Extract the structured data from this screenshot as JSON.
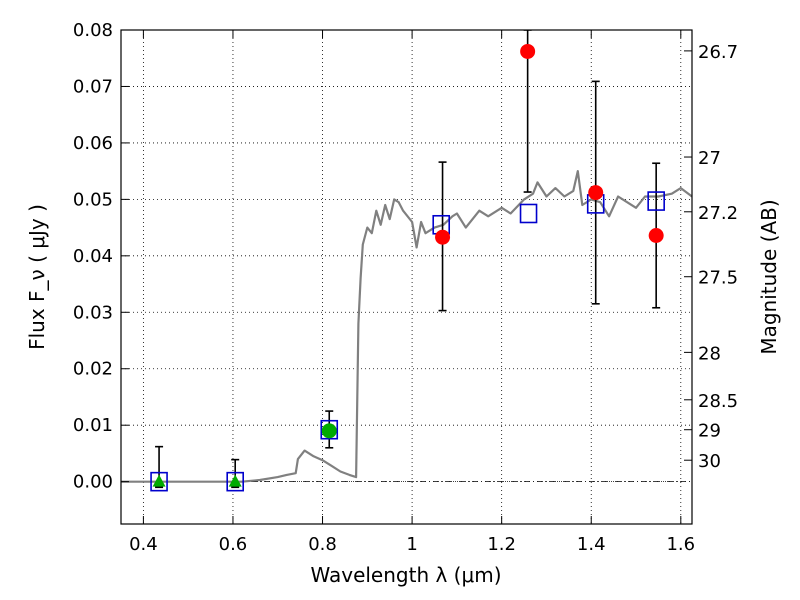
{
  "chart_data": {
    "type": "scatter",
    "xlabel": "Wavelength  λ (μm)",
    "ylabel": "Flux  F_ν  ( μJy )",
    "ylabel_right": "Magnitude (AB)",
    "xlim": [
      0.35,
      1.625
    ],
    "ylim": [
      -0.0075,
      0.08
    ],
    "grid": true,
    "x_ticks": [
      0.4,
      0.6,
      0.8,
      1.0,
      1.2,
      1.4,
      1.6
    ],
    "x_tick_labels": [
      "0.4",
      "0.6",
      "0.8",
      "1",
      "1.2",
      "1.4",
      "1.6"
    ],
    "y_ticks": [
      0.0,
      0.01,
      0.02,
      0.03,
      0.04,
      0.05,
      0.06,
      0.07,
      0.08
    ],
    "y_tick_labels": [
      "0.00",
      "0.01",
      "0.02",
      "0.03",
      "0.04",
      "0.05",
      "0.06",
      "0.07",
      "0.08"
    ],
    "right_ticks": [
      {
        "flux": 0.0763,
        "label": "26.7"
      },
      {
        "flux": 0.0575,
        "label": "27"
      },
      {
        "flux": 0.0478,
        "label": "27.2"
      },
      {
        "flux": 0.0363,
        "label": "27.5"
      },
      {
        "flux": 0.0229,
        "label": "28"
      },
      {
        "flux": 0.0145,
        "label": "28.5"
      },
      {
        "flux": 0.0092,
        "label": "29"
      },
      {
        "flux": 0.0038,
        "label": "30"
      }
    ],
    "template_spectrum": {
      "color": "#808080",
      "x": [
        0.35,
        0.5,
        0.62,
        0.66,
        0.7,
        0.72,
        0.74,
        0.745,
        0.76,
        0.77,
        0.78,
        0.8,
        0.82,
        0.84,
        0.86,
        0.875,
        0.88,
        0.885,
        0.89,
        0.9,
        0.91,
        0.92,
        0.93,
        0.94,
        0.95,
        0.96,
        0.97,
        0.98,
        1.0,
        1.01,
        1.02,
        1.03,
        1.05,
        1.07,
        1.09,
        1.1,
        1.12,
        1.15,
        1.17,
        1.2,
        1.22,
        1.25,
        1.27,
        1.28,
        1.3,
        1.32,
        1.34,
        1.36,
        1.37,
        1.38,
        1.4,
        1.42,
        1.44,
        1.46,
        1.48,
        1.5,
        1.52,
        1.55,
        1.58,
        1.6,
        1.625
      ],
      "y": [
        0.0,
        0.0,
        0.0,
        0.0003,
        0.0008,
        0.0012,
        0.0015,
        0.004,
        0.0055,
        0.005,
        0.0045,
        0.0038,
        0.0028,
        0.0018,
        0.0012,
        0.0008,
        0.028,
        0.036,
        0.042,
        0.045,
        0.044,
        0.048,
        0.0455,
        0.049,
        0.0465,
        0.05,
        0.0495,
        0.048,
        0.046,
        0.0415,
        0.046,
        0.044,
        0.045,
        0.0455,
        0.047,
        0.0475,
        0.045,
        0.048,
        0.047,
        0.0485,
        0.0475,
        0.05,
        0.051,
        0.053,
        0.0505,
        0.052,
        0.0505,
        0.0515,
        0.055,
        0.049,
        0.05,
        0.0495,
        0.047,
        0.0505,
        0.0495,
        0.0485,
        0.0505,
        0.0505,
        0.051,
        0.052,
        0.0505
      ]
    },
    "series": [
      {
        "marker": "square-open",
        "color": "#0000cc",
        "x": [
          0.435,
          0.605,
          0.815,
          1.065,
          1.26,
          1.41,
          1.545
        ],
        "values": [
          0.0,
          0.0,
          0.0092,
          0.0455,
          0.0475,
          0.0492,
          0.0497
        ]
      },
      {
        "marker": "circle",
        "color": "#ff0000",
        "x": [
          1.068,
          1.258,
          1.41,
          1.545
        ],
        "values": [
          0.0433,
          0.0762,
          0.0512,
          0.0436
        ],
        "error_low": [
          0.0303,
          0.0513,
          0.0315,
          0.0308
        ],
        "error_high": [
          0.0566,
          0.08,
          0.0709,
          0.0564
        ]
      },
      {
        "marker": "circle",
        "color": "#00aa00",
        "x": [
          0.815
        ],
        "values": [
          0.009
        ],
        "error_low": [
          0.006
        ],
        "error_high": [
          0.0125
        ]
      },
      {
        "marker": "triangle",
        "color": "#00aa00",
        "x": [
          0.435,
          0.605
        ],
        "values": [
          0.0,
          0.0
        ],
        "error_low": [
          -0.001,
          -0.001
        ],
        "error_high": [
          0.0062,
          0.0039
        ]
      }
    ]
  }
}
